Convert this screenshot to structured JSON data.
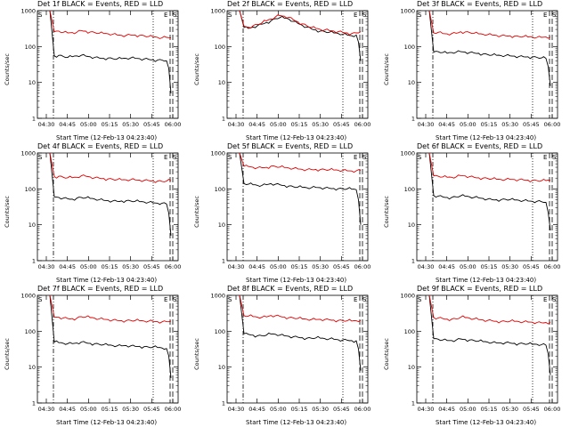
{
  "common": {
    "ylabel": "Counts/sec",
    "xlabel": "Start Time (12-Feb-13 04:23:40)",
    "xticks": [
      "04:30",
      "04:45",
      "05:00",
      "05:15",
      "05:30",
      "05:45",
      "06:00"
    ],
    "yticks": [
      "1",
      "10",
      "100",
      "1000"
    ],
    "marker_S": "S",
    "marker_E": "E",
    "colors": {
      "events": "#000000",
      "lld": "#e00000"
    }
  },
  "chart_data": [
    {
      "type": "line",
      "title": "Det 1f BLACK = Events, RED = LLD",
      "ylim": [
        1,
        1000
      ],
      "series": [
        {
          "name": "Events",
          "values": [
            55,
            57,
            53,
            50,
            52,
            55,
            57,
            54,
            52,
            50,
            48,
            47,
            48,
            46,
            45,
            46,
            47,
            48,
            47,
            46,
            45,
            44,
            43,
            42,
            42,
            40,
            5
          ]
        },
        {
          "name": "LLD",
          "values": [
            260,
            270,
            250,
            240,
            245,
            250,
            280,
            270,
            255,
            245,
            235,
            230,
            225,
            220,
            210,
            205,
            205,
            210,
            210,
            205,
            200,
            190,
            185,
            180,
            175,
            180,
            175
          ]
        }
      ]
    },
    {
      "type": "line",
      "title": "Det 2f BLACK = Events, RED = LLD",
      "ylim": [
        1,
        1000
      ],
      "series": [
        {
          "name": "Events",
          "values": [
            340,
            320,
            350,
            380,
            420,
            470,
            520,
            600,
            640,
            620,
            580,
            500,
            440,
            390,
            350,
            310,
            290,
            270,
            260,
            250,
            240,
            230,
            220,
            210,
            200,
            210,
            40
          ]
        },
        {
          "name": "LLD",
          "values": [
            370,
            350,
            380,
            410,
            460,
            520,
            580,
            670,
            730,
            700,
            650,
            560,
            490,
            430,
            380,
            340,
            320,
            300,
            290,
            280,
            270,
            260,
            250,
            240,
            230,
            240,
            260
          ]
        }
      ]
    },
    {
      "type": "line",
      "title": "Det 3f BLACK = Events, RED = LLD",
      "ylim": [
        1,
        1000
      ],
      "series": [
        {
          "name": "Events",
          "values": [
            70,
            72,
            68,
            65,
            68,
            70,
            72,
            70,
            68,
            66,
            65,
            62,
            60,
            58,
            57,
            56,
            56,
            55,
            54,
            53,
            52,
            52,
            51,
            50,
            48,
            47,
            8
          ]
        },
        {
          "name": "LLD",
          "values": [
            240,
            250,
            230,
            225,
            230,
            235,
            260,
            255,
            245,
            235,
            225,
            220,
            215,
            210,
            205,
            200,
            200,
            200,
            195,
            190,
            190,
            185,
            185,
            180,
            180,
            185,
            185
          ]
        }
      ]
    },
    {
      "type": "line",
      "title": "Det 4f BLACK = Events, RED = LLD",
      "ylim": [
        1,
        1000
      ],
      "series": [
        {
          "name": "Events",
          "values": [
            60,
            58,
            55,
            53,
            52,
            55,
            58,
            56,
            54,
            52,
            50,
            48,
            47,
            46,
            45,
            46,
            47,
            46,
            45,
            44,
            43,
            42,
            41,
            40,
            40,
            38,
            5
          ]
        },
        {
          "name": "LLD",
          "values": [
            220,
            225,
            210,
            205,
            205,
            210,
            230,
            225,
            215,
            205,
            200,
            195,
            190,
            185,
            180,
            178,
            178,
            180,
            178,
            175,
            172,
            170,
            168,
            165,
            162,
            165,
            170
          ]
        }
      ]
    },
    {
      "type": "line",
      "title": "Det 5f BLACK = Events, RED = LLD",
      "ylim": [
        1,
        1000
      ],
      "series": [
        {
          "name": "Events",
          "values": [
            140,
            135,
            130,
            125,
            125,
            130,
            140,
            135,
            130,
            125,
            120,
            115,
            112,
            110,
            108,
            108,
            110,
            108,
            106,
            104,
            103,
            102,
            100,
            100,
            98,
            95,
            10
          ]
        },
        {
          "name": "LLD",
          "values": [
            430,
            420,
            400,
            390,
            390,
            400,
            430,
            420,
            405,
            395,
            380,
            370,
            360,
            350,
            345,
            345,
            350,
            348,
            345,
            340,
            335,
            330,
            325,
            320,
            315,
            320,
            330
          ]
        }
      ]
    },
    {
      "type": "line",
      "title": "Det 6f BLACK = Events, RED = LLD",
      "ylim": [
        1,
        1000
      ],
      "series": [
        {
          "name": "Events",
          "values": [
            65,
            63,
            60,
            58,
            58,
            60,
            64,
            62,
            60,
            58,
            56,
            54,
            52,
            50,
            50,
            50,
            51,
            50,
            49,
            48,
            47,
            46,
            45,
            45,
            44,
            42,
            7
          ]
        },
        {
          "name": "LLD",
          "values": [
            230,
            225,
            215,
            210,
            210,
            215,
            235,
            230,
            220,
            210,
            205,
            200,
            195,
            190,
            185,
            182,
            182,
            184,
            182,
            180,
            178,
            175,
            172,
            170,
            168,
            170,
            175
          ]
        }
      ]
    },
    {
      "type": "line",
      "title": "Det 7f BLACK = Events, RED = LLD",
      "ylim": [
        1,
        1000
      ],
      "series": [
        {
          "name": "Events",
          "values": [
            50,
            48,
            46,
            45,
            45,
            47,
            50,
            48,
            46,
            45,
            43,
            42,
            41,
            40,
            39,
            39,
            40,
            39,
            38,
            38,
            37,
            36,
            36,
            35,
            34,
            33,
            5
          ]
        },
        {
          "name": "LLD",
          "values": [
            250,
            245,
            235,
            225,
            225,
            230,
            255,
            250,
            240,
            230,
            220,
            215,
            210,
            205,
            200,
            198,
            198,
            200,
            198,
            195,
            192,
            190,
            188,
            185,
            182,
            185,
            190
          ]
        }
      ]
    },
    {
      "type": "line",
      "title": "Det 8f BLACK = Events, RED = LLD",
      "ylim": [
        1,
        1000
      ],
      "series": [
        {
          "name": "Events",
          "values": [
            85,
            82,
            78,
            75,
            75,
            78,
            84,
            82,
            78,
            75,
            72,
            70,
            68,
            66,
            64,
            64,
            65,
            64,
            62,
            61,
            60,
            58,
            57,
            56,
            55,
            54,
            8
          ]
        },
        {
          "name": "LLD",
          "values": [
            270,
            265,
            255,
            245,
            245,
            250,
            275,
            270,
            260,
            250,
            240,
            235,
            228,
            220,
            215,
            212,
            212,
            214,
            212,
            208,
            205,
            200,
            198,
            195,
            192,
            195,
            200
          ]
        }
      ]
    },
    {
      "type": "line",
      "title": "Det 9f BLACK = Events, RED = LLD",
      "ylim": [
        1,
        1000
      ],
      "series": [
        {
          "name": "Events",
          "values": [
            62,
            60,
            57,
            55,
            55,
            57,
            61,
            59,
            57,
            55,
            53,
            51,
            50,
            48,
            47,
            47,
            48,
            47,
            46,
            45,
            45,
            44,
            43,
            43,
            42,
            41,
            6
          ]
        },
        {
          "name": "LLD",
          "values": [
            240,
            235,
            225,
            218,
            218,
            222,
            245,
            240,
            230,
            222,
            212,
            206,
            200,
            195,
            190,
            188,
            188,
            190,
            188,
            185,
            182,
            180,
            178,
            175,
            172,
            175,
            180
          ]
        }
      ]
    }
  ]
}
